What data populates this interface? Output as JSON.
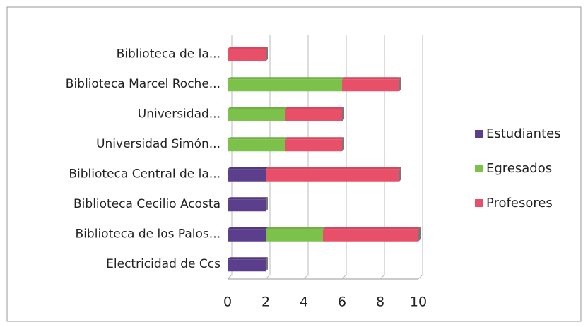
{
  "chart_data": {
    "type": "stacked_barh",
    "categories": [
      "Biblioteca de la...",
      "Biblioteca Marcel Roche...",
      "Universidad...",
      "Universidad Simón...",
      "Biblioteca Central de la...",
      "Biblioteca Cecilio Acosta",
      "Biblioteca de los Palos...",
      "Electricidad de Ccs"
    ],
    "series": [
      {
        "name": "Estudiantes",
        "color": "#5b3f8c",
        "values": [
          0,
          0,
          0,
          0,
          2,
          2,
          2,
          2
        ]
      },
      {
        "name": "Egresados",
        "color": "#7cc24a",
        "values": [
          0,
          6,
          3,
          3,
          0,
          0,
          3,
          0
        ]
      },
      {
        "name": "Profesores",
        "color": "#e8506a",
        "values": [
          2,
          3,
          3,
          3,
          7,
          0,
          5,
          0
        ]
      }
    ],
    "xlim": [
      0,
      10
    ],
    "xticks": [
      0,
      2,
      4,
      6,
      8,
      10
    ],
    "grid": true,
    "legend": "right"
  }
}
